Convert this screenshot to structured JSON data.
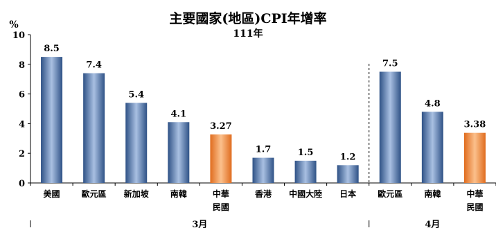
{
  "chart_data": {
    "type": "bar",
    "title": "主要國家(地區)CPI年增率",
    "subtitle": "111年",
    "ylabel": "%",
    "ylim": [
      0,
      10
    ],
    "yticks": [
      "0",
      "2",
      "4",
      "6",
      "8",
      "10"
    ],
    "grid": false,
    "categories": [
      {
        "label": "美國",
        "value": 8.5,
        "value_label": "8.5",
        "group": "3月",
        "highlight": false
      },
      {
        "label": "歐元區",
        "value": 7.4,
        "value_label": "7.4",
        "group": "3月",
        "highlight": false
      },
      {
        "label": "新加坡",
        "value": 5.4,
        "value_label": "5.4",
        "group": "3月",
        "highlight": false
      },
      {
        "label": "南韓",
        "value": 4.1,
        "value_label": "4.1",
        "group": "3月",
        "highlight": false
      },
      {
        "label": "中華民國",
        "label_lines": [
          "中華",
          "民國"
        ],
        "value": 3.27,
        "value_label": "3.27",
        "group": "3月",
        "highlight": true
      },
      {
        "label": "香港",
        "value": 1.7,
        "value_label": "1.7",
        "group": "3月",
        "highlight": false
      },
      {
        "label": "中國大陸",
        "value": 1.5,
        "value_label": "1.5",
        "group": "3月",
        "highlight": false
      },
      {
        "label": "日本",
        "value": 1.2,
        "value_label": "1.2",
        "group": "3月",
        "highlight": false
      },
      {
        "label": "歐元區",
        "value": 7.5,
        "value_label": "7.5",
        "group": "4月",
        "highlight": false
      },
      {
        "label": "南韓",
        "value": 4.8,
        "value_label": "4.8",
        "group": "4月",
        "highlight": false
      },
      {
        "label": "中華民國",
        "label_lines": [
          "中華",
          "民國"
        ],
        "value": 3.38,
        "value_label": "3.38",
        "group": "4月",
        "highlight": true
      }
    ],
    "groups": [
      "3月",
      "4月"
    ],
    "colors": {
      "bar_dark": "#2f5286",
      "bar_light": "#a9c0e2",
      "highlight_dark": "#e06c1e",
      "highlight_light": "#fbc08c"
    }
  }
}
